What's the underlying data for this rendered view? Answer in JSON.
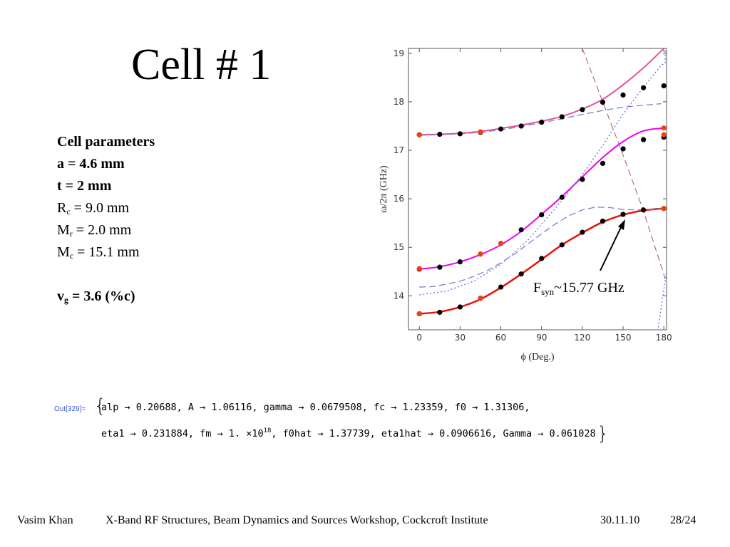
{
  "title": "Cell # 1",
  "params": {
    "heading": "Cell parameters",
    "a": "a = 4.6 mm",
    "t": "t = 2 mm",
    "rc_sym": "R",
    "rc_sub": "c",
    "rc_val": " = 9.0 mm",
    "mr_sym": "M",
    "mr_sub": "r",
    "mr_val": " = 2.0 mm",
    "mc_sym": "M",
    "mc_sub": "c",
    "mc_val": " = 15.1 mm",
    "vg_sym": "v",
    "vg_sub": "g",
    "vg_val": " = 3.6 (%c)"
  },
  "annotation": {
    "main": "F",
    "sub": "syn",
    "rest": "~15.77 GHz"
  },
  "output": {
    "label": "Out[329]=",
    "line1": "alp → 0.20688, A → 1.06116, gamma → 0.0679508, fc → 1.23359, f0 → 1.31306,",
    "line2a": "eta1 → 0.231884, fm → 1. ×10",
    "line2sup": "18",
    "line2b": ", f0hat → 1.37739, eta1hat → 0.0906616, Gamma → 0.061028"
  },
  "footer": {
    "author": "Vasim Khan",
    "event": "X-Band RF Structures, Beam Dynamics and Sources Workshop, Cockcroft Institute",
    "date": "30.11.10",
    "page": "28/24"
  },
  "chart_data": {
    "type": "line",
    "xlabel": "ϕ (Deg.)",
    "ylabel": "ω/2π (GHz)",
    "xlim": [
      -8,
      182
    ],
    "ylim": [
      13.3,
      19.1
    ],
    "xticks": [
      0,
      30,
      60,
      90,
      120,
      150,
      180
    ],
    "yticks": [
      14,
      15,
      16,
      17,
      18,
      19
    ],
    "grid": false,
    "series": [
      {
        "kind": "solid",
        "color": "#e8509a",
        "width": 2,
        "x": [
          0,
          15,
          30,
          45,
          60,
          75,
          90,
          105,
          120,
          135,
          150,
          165,
          180
        ],
        "y": [
          17.32,
          17.33,
          17.35,
          17.39,
          17.45,
          17.52,
          17.6,
          17.7,
          17.85,
          18.05,
          18.35,
          18.7,
          19.1
        ]
      },
      {
        "kind": "solid",
        "color": "#ee00ee",
        "width": 2,
        "x": [
          0,
          15,
          30,
          45,
          60,
          75,
          90,
          105,
          120,
          135,
          150,
          165,
          180
        ],
        "y": [
          14.55,
          14.6,
          14.7,
          14.85,
          15.05,
          15.33,
          15.68,
          16.05,
          16.45,
          16.85,
          17.18,
          17.4,
          17.46
        ]
      },
      {
        "kind": "solid",
        "color": "#e8140a",
        "width": 2.5,
        "x": [
          0,
          15,
          30,
          45,
          60,
          75,
          90,
          105,
          120,
          135,
          150,
          165,
          180
        ],
        "y": [
          13.63,
          13.67,
          13.77,
          13.93,
          14.17,
          14.45,
          14.75,
          15.05,
          15.3,
          15.52,
          15.67,
          15.76,
          15.8
        ]
      },
      {
        "kind": "dashed",
        "color": "#7b7fd0",
        "width": 1.3,
        "x": [
          0,
          10,
          20,
          30,
          40,
          50,
          60,
          70,
          80,
          90,
          100,
          110,
          120,
          130,
          140,
          150,
          160,
          170,
          180
        ],
        "y": [
          14.18,
          14.19,
          14.24,
          14.3,
          14.4,
          14.52,
          14.68,
          14.86,
          15.07,
          15.28,
          15.48,
          15.65,
          15.77,
          15.83,
          15.82,
          15.78,
          15.77,
          15.78,
          15.8
        ]
      },
      {
        "kind": "dashed",
        "color": "#7b7fd0",
        "width": 1.3,
        "x": [
          0,
          15,
          30,
          45,
          60,
          75,
          90,
          105,
          120,
          135,
          150,
          165,
          178
        ],
        "y": [
          17.31,
          17.32,
          17.34,
          17.37,
          17.42,
          17.49,
          17.57,
          17.65,
          17.74,
          17.82,
          17.89,
          17.93,
          17.96
        ]
      },
      {
        "kind": "dotted",
        "color": "#6a6ee0",
        "width": 1.3,
        "x": [
          0,
          20,
          40,
          60,
          80,
          100,
          120,
          135,
          150,
          165,
          178,
          181,
          181
        ],
        "y": [
          14.02,
          14.1,
          14.3,
          14.65,
          15.15,
          15.8,
          16.5,
          17.1,
          17.75,
          18.3,
          18.75,
          18.8,
          19.1
        ]
      },
      {
        "kind": "dotted",
        "color": "#6a6ee0",
        "width": 1.3,
        "x": [
          176,
          179,
          182
        ],
        "y": [
          13.35,
          13.95,
          14.5
        ]
      },
      {
        "kind": "dashed",
        "color": "#b04a80",
        "width": 1,
        "x": [
          120,
          135,
          150,
          165,
          181
        ],
        "y": [
          19.1,
          18.0,
          16.9,
          15.75,
          14.35
        ]
      }
    ],
    "markers": [
      {
        "color": "#000000",
        "x": [
          0,
          15,
          30,
          45,
          60,
          75,
          90,
          105,
          120,
          135,
          150,
          165,
          180
        ],
        "y": [
          17.32,
          17.33,
          17.34,
          17.37,
          17.44,
          17.5,
          17.58,
          17.69,
          17.84,
          17.99,
          18.14,
          18.29,
          18.33
        ]
      },
      {
        "color": "#000000",
        "x": [
          0,
          15,
          30,
          45,
          60,
          75,
          90,
          105,
          120,
          135,
          150,
          165,
          180
        ],
        "y": [
          14.55,
          14.59,
          14.7,
          14.86,
          15.08,
          15.36,
          15.67,
          16.03,
          16.4,
          16.73,
          17.03,
          17.22,
          17.27
        ]
      },
      {
        "color": "#000000",
        "x": [
          0,
          15,
          30,
          45,
          60,
          75,
          90,
          105,
          120,
          135,
          150,
          165,
          180
        ],
        "y": [
          13.63,
          13.66,
          13.77,
          13.95,
          14.18,
          14.45,
          14.77,
          15.05,
          15.31,
          15.54,
          15.68,
          15.77,
          15.8
        ]
      },
      {
        "color": "#f04010",
        "x": [
          0,
          45,
          180
        ],
        "y": [
          17.32,
          17.38,
          17.32
        ]
      },
      {
        "color": "#f04010",
        "x": [
          0,
          45,
          60,
          180
        ],
        "y": [
          14.56,
          14.86,
          15.08,
          17.46
        ]
      },
      {
        "color": "#f04010",
        "x": [
          0,
          45,
          180
        ],
        "y": [
          13.63,
          13.95,
          15.8
        ]
      }
    ]
  }
}
